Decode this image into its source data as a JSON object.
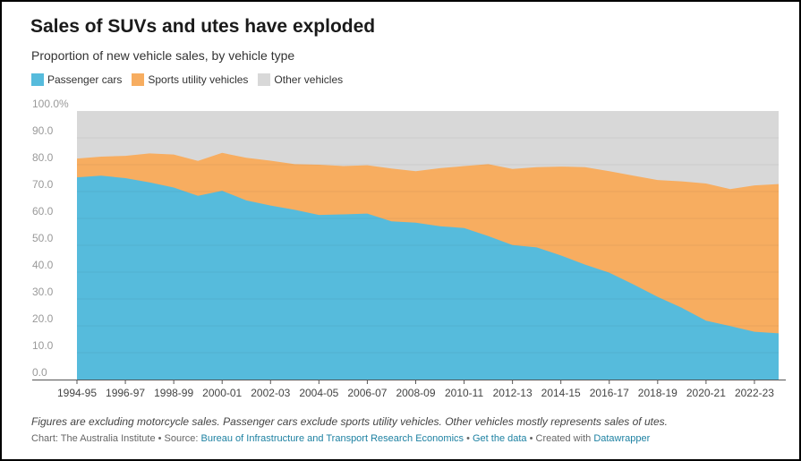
{
  "header": {
    "title": "Sales of SUVs and utes have exploded",
    "subtitle": "Proportion of new vehicle sales, by vehicle type"
  },
  "legend": [
    {
      "label": "Passenger cars",
      "color": "#56bbdc"
    },
    {
      "label": "Sports utility vehicles",
      "color": "#f7ad60"
    },
    {
      "label": "Other vehicles",
      "color": "#d8d8d8"
    }
  ],
  "footer": {
    "note": "Figures are excluding motorcycle sales. Passenger cars exclude sports utility vehicles. Other vehicles mostly represents sales of utes.",
    "chart_by": "Chart: The Australia Institute",
    "sep1": " • Source: ",
    "source": "Bureau of Infrastructure and Transport Research Economics",
    "sep2": " • ",
    "get_data": "Get the data",
    "sep3": " • Created with ",
    "tool": "Datawrapper"
  },
  "chart_data": {
    "type": "area",
    "stacked": true,
    "x": [
      "1994-95",
      "1995-96",
      "1996-97",
      "1997-98",
      "1998-99",
      "1999-00",
      "2000-01",
      "2001-02",
      "2002-03",
      "2003-04",
      "2004-05",
      "2005-06",
      "2006-07",
      "2007-08",
      "2008-09",
      "2009-10",
      "2010-11",
      "2011-12",
      "2012-13",
      "2013-14",
      "2014-15",
      "2015-16",
      "2016-17",
      "2017-18",
      "2018-19",
      "2019-20",
      "2020-21",
      "2021-22",
      "2022-23",
      "2023-24"
    ],
    "x_tick_labels": [
      "1994-95",
      "1996-97",
      "1998-99",
      "2000-01",
      "2002-03",
      "2004-05",
      "2006-07",
      "2008-09",
      "2010-11",
      "2012-13",
      "2014-15",
      "2016-17",
      "2018-19",
      "2020-21",
      "2022-23"
    ],
    "ylim": [
      0,
      100
    ],
    "y_ticks": [
      "0.0",
      "10.0",
      "20.0",
      "30.0",
      "40.0",
      "50.0",
      "60.0",
      "70.0",
      "80.0",
      "90.0",
      "100.0%"
    ],
    "series": [
      {
        "name": "Passenger cars",
        "color": "#56bbdc",
        "values": [
          75.3,
          75.9,
          75.0,
          73.4,
          71.5,
          68.4,
          70.3,
          66.7,
          64.8,
          63.2,
          61.3,
          61.5,
          61.8,
          58.9,
          58.4,
          57.1,
          56.4,
          53.4,
          50.1,
          49.2,
          46.2,
          42.8,
          39.8,
          35.4,
          30.8,
          26.7,
          21.9,
          19.9,
          17.8,
          17.2
        ],
        "cumulative": true
      },
      {
        "name": "Sports utility vehicles",
        "color": "#f7ad60",
        "values": [
          82.3,
          83.0,
          83.3,
          84.2,
          83.8,
          81.4,
          84.4,
          82.6,
          81.5,
          80.2,
          80.0,
          79.5,
          79.8,
          78.6,
          77.6,
          78.7,
          79.5,
          80.2,
          78.4,
          79.1,
          79.3,
          79.1,
          77.6,
          75.9,
          74.3,
          73.8,
          73.0,
          70.9,
          72.3,
          72.8
        ],
        "cumulative": true
      },
      {
        "name": "Other vehicles",
        "color": "#d8d8d8",
        "values": [
          100,
          100,
          100,
          100,
          100,
          100,
          100,
          100,
          100,
          100,
          100,
          100,
          100,
          100,
          100,
          100,
          100,
          100,
          100,
          100,
          100,
          100,
          100,
          100,
          100,
          100,
          100,
          100,
          100,
          100
        ],
        "cumulative": true
      }
    ]
  }
}
